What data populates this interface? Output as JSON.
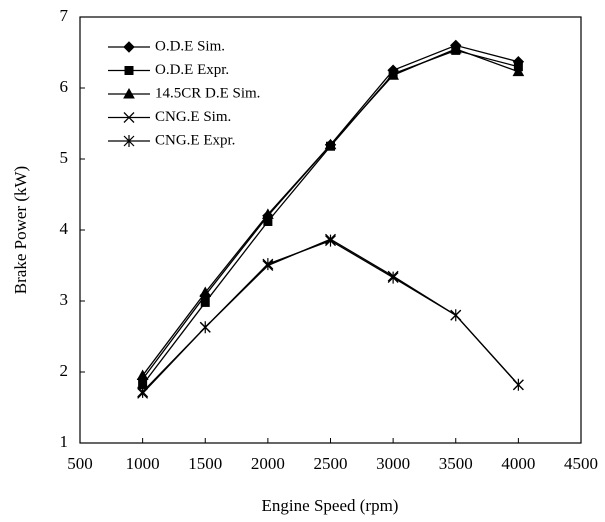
{
  "chart_data": {
    "type": "line",
    "x_label": "Engine Speed (rpm)",
    "y_label": "Brake Power (kW)",
    "x": [
      1000,
      1500,
      2000,
      2500,
      3000,
      3500,
      4000
    ],
    "series": [
      {
        "name": "O.D.E Sim.",
        "color": "#000000",
        "marker": "diamond",
        "values": [
          1.9,
          3.08,
          4.2,
          5.2,
          6.25,
          6.6,
          6.37
        ]
      },
      {
        "name": "O.D.E Expr.",
        "color": "#000000",
        "marker": "square",
        "values": [
          1.82,
          2.98,
          4.12,
          5.18,
          6.2,
          6.53,
          6.3
        ]
      },
      {
        "name": "14.5CR D.E Sim.",
        "color": "#000000",
        "marker": "triangle",
        "values": [
          1.95,
          3.12,
          4.22,
          5.2,
          6.18,
          6.55,
          6.23
        ]
      },
      {
        "name": "CNG.E Sim.",
        "color": "#000000",
        "marker": "x",
        "values": [
          1.7,
          2.63,
          3.5,
          3.87,
          3.35,
          2.8,
          1.82
        ]
      },
      {
        "name": "CNG.E Expr.",
        "color": "#000000",
        "marker": "star",
        "values": [
          1.72,
          2.63,
          3.52,
          3.85,
          3.33,
          2.8,
          1.82
        ]
      }
    ],
    "xlim": [
      500,
      4500
    ],
    "xticks": [
      500,
      1000,
      1500,
      2000,
      2500,
      3000,
      3500,
      4000,
      4500
    ],
    "ylim": [
      1,
      7
    ],
    "yticks": [
      1,
      2,
      3,
      4,
      5,
      6,
      7
    ],
    "grid": false,
    "legend": "upper left"
  }
}
